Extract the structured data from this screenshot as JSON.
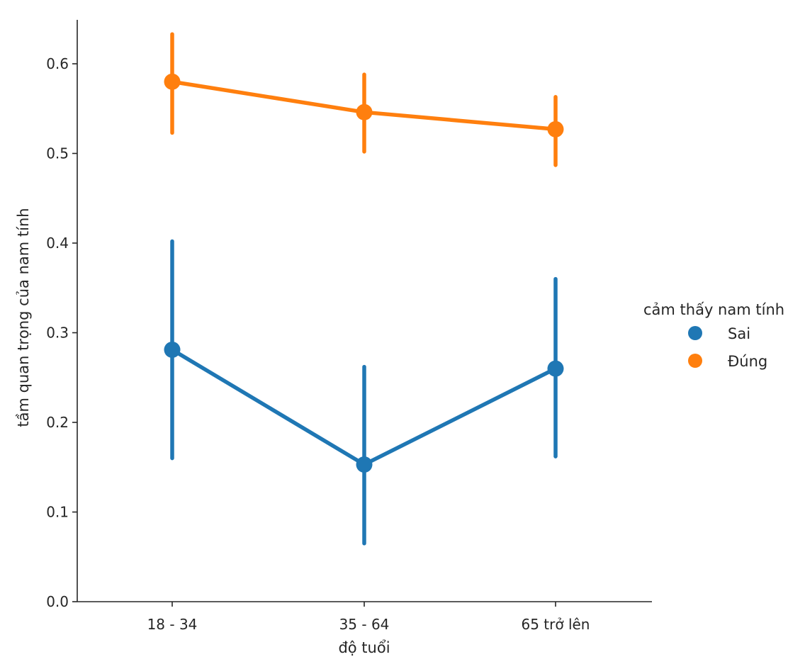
{
  "chart_data": {
    "type": "line",
    "kind": "point-plot with error bars",
    "categories": [
      "18 - 34",
      "35 - 64",
      "65 trở lên"
    ],
    "xlabel": "độ tuổi",
    "ylabel": "tầm quan trọng của nam tính",
    "ylim": [
      0.0,
      0.65
    ],
    "yticks": [
      "0.0",
      "0.1",
      "0.2",
      "0.3",
      "0.4",
      "0.5",
      "0.6"
    ],
    "grid": false,
    "legend": {
      "title": "cảm thấy nam tính",
      "placement": "center-right"
    },
    "series": [
      {
        "name": "Sai",
        "color": "#1f77b4",
        "values": [
          0.281,
          0.153,
          0.26
        ],
        "ci_low": [
          0.16,
          0.065,
          0.162
        ],
        "ci_high": [
          0.402,
          0.262,
          0.36
        ]
      },
      {
        "name": "Đúng",
        "color": "#ff7f0e",
        "values": [
          0.58,
          0.546,
          0.527
        ],
        "ci_low": [
          0.523,
          0.502,
          0.487
        ],
        "ci_high": [
          0.633,
          0.588,
          0.563
        ]
      }
    ]
  }
}
